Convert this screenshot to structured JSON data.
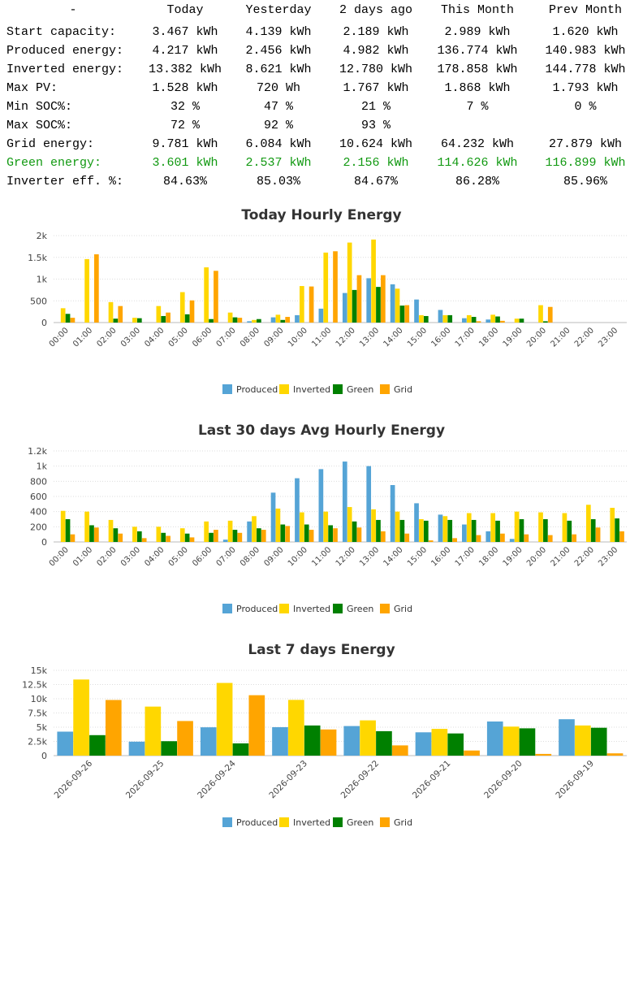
{
  "table": {
    "corner": "-",
    "columns": [
      "Today",
      "Yesterday",
      "2 days ago",
      "This Month",
      "Prev Month"
    ],
    "rows": [
      {
        "label": "Start capacity:",
        "values": [
          "3.467 kWh",
          "4.139 kWh",
          "2.189 kWh",
          "2.989 kWh",
          "1.620 kWh"
        ],
        "highlight": false
      },
      {
        "label": "Produced energy:",
        "values": [
          "4.217 kWh",
          "2.456 kWh",
          "4.982 kWh",
          "136.774 kWh",
          "140.983 kWh"
        ],
        "highlight": false
      },
      {
        "label": "Inverted energy:",
        "values": [
          "13.382 kWh",
          "8.621 kWh",
          "12.780 kWh",
          "178.858 kWh",
          "144.778 kWh"
        ],
        "highlight": false
      },
      {
        "label": "Max PV:",
        "values": [
          "1.528 kWh",
          "720 Wh",
          "1.767 kWh",
          "1.868 kWh",
          "1.793 kWh"
        ],
        "highlight": false
      },
      {
        "label": "Min SOC%:",
        "values": [
          "32 %",
          "47 %",
          "21 %",
          "7 %",
          "0 %"
        ],
        "highlight": false
      },
      {
        "label": "Max SOC%:",
        "values": [
          "72 %",
          "92 %",
          "93 %",
          "",
          ""
        ],
        "highlight": false
      },
      {
        "label": "Grid energy:",
        "values": [
          "9.781 kWh",
          "6.084 kWh",
          "10.624 kWh",
          "64.232 kWh",
          "27.879 kWh"
        ],
        "highlight": false
      },
      {
        "label": "Green energy:",
        "values": [
          "3.601 kWh",
          "2.537 kWh",
          "2.156 kWh",
          "114.626 kWh",
          "116.899 kWh"
        ],
        "highlight": true
      },
      {
        "label": "Inverter eff. %:",
        "values": [
          "84.63%",
          "85.03%",
          "84.67%",
          "86.28%",
          "85.96%"
        ],
        "highlight": false
      }
    ],
    "colors": {
      "text": "#000000",
      "green": "#119911"
    }
  },
  "chart_data": [
    {
      "type": "bar",
      "title": "Today Hourly Energy",
      "categories": [
        "00:00",
        "01:00",
        "02:00",
        "03:00",
        "04:00",
        "05:00",
        "06:00",
        "07:00",
        "08:00",
        "09:00",
        "10:00",
        "11:00",
        "12:00",
        "13:00",
        "14:00",
        "15:00",
        "16:00",
        "17:00",
        "18:00",
        "19:00",
        "20:00",
        "21:00",
        "22:00",
        "23:00"
      ],
      "series": [
        {
          "name": "Produced",
          "color": "#55a4d6",
          "values": [
            0,
            0,
            0,
            0,
            0,
            0,
            0,
            0,
            30,
            120,
            170,
            320,
            680,
            1020,
            880,
            530,
            290,
            100,
            70,
            0,
            0,
            0,
            0,
            0
          ]
        },
        {
          "name": "Inverted",
          "color": "#ffd700",
          "values": [
            330,
            1460,
            470,
            110,
            380,
            700,
            1270,
            230,
            60,
            180,
            840,
            1610,
            1840,
            1910,
            780,
            170,
            170,
            170,
            180,
            90,
            400,
            0,
            0,
            0
          ]
        },
        {
          "name": "Green",
          "color": "#008000",
          "values": [
            200,
            0,
            90,
            100,
            150,
            190,
            80,
            120,
            80,
            60,
            0,
            0,
            750,
            820,
            390,
            150,
            170,
            130,
            140,
            90,
            30,
            0,
            0,
            0
          ]
        },
        {
          "name": "Grid",
          "color": "#ffa500",
          "values": [
            110,
            1570,
            380,
            0,
            230,
            510,
            1190,
            110,
            0,
            130,
            830,
            1640,
            1090,
            1090,
            400,
            0,
            0,
            30,
            40,
            0,
            360,
            0,
            0,
            0
          ]
        }
      ],
      "ylim": [
        0,
        2000
      ],
      "yticks": [
        "0",
        "500",
        "1k",
        "1.5k",
        "2k"
      ],
      "grid": true,
      "legend": "bottom"
    },
    {
      "type": "bar",
      "title": "Last 30 days Avg Hourly Energy",
      "categories": [
        "00:00",
        "01:00",
        "02:00",
        "03:00",
        "04:00",
        "05:00",
        "06:00",
        "07:00",
        "08:00",
        "09:00",
        "10:00",
        "11:00",
        "12:00",
        "13:00",
        "14:00",
        "15:00",
        "16:00",
        "17:00",
        "18:00",
        "19:00",
        "20:00",
        "21:00",
        "22:00",
        "23:00"
      ],
      "series": [
        {
          "name": "Produced",
          "color": "#55a4d6",
          "values": [
            0,
            0,
            0,
            0,
            0,
            0,
            0,
            30,
            270,
            650,
            840,
            960,
            1060,
            1000,
            750,
            510,
            360,
            230,
            140,
            40,
            0,
            0,
            0,
            0
          ]
        },
        {
          "name": "Inverted",
          "color": "#ffd700",
          "values": [
            410,
            400,
            290,
            200,
            200,
            180,
            270,
            280,
            340,
            440,
            390,
            400,
            460,
            430,
            400,
            300,
            340,
            380,
            380,
            400,
            390,
            380,
            490,
            450
          ]
        },
        {
          "name": "Green",
          "color": "#008000",
          "values": [
            300,
            220,
            180,
            140,
            120,
            110,
            120,
            160,
            180,
            230,
            230,
            220,
            270,
            290,
            290,
            280,
            290,
            290,
            280,
            300,
            300,
            280,
            300,
            310
          ]
        },
        {
          "name": "Grid",
          "color": "#ffa500",
          "values": [
            100,
            190,
            110,
            50,
            80,
            60,
            160,
            120,
            160,
            210,
            160,
            180,
            190,
            140,
            110,
            20,
            50,
            90,
            110,
            100,
            90,
            100,
            190,
            140
          ]
        }
      ],
      "ylim": [
        0,
        1200
      ],
      "yticks": [
        "0",
        "200",
        "400",
        "600",
        "800",
        "1k",
        "1.2k"
      ],
      "grid": true,
      "legend": "bottom"
    },
    {
      "type": "bar",
      "title": "Last 7 days Energy",
      "categories": [
        "2026-09-26",
        "2026-09-25",
        "2026-09-24",
        "2026-09-23",
        "2026-09-22",
        "2026-09-21",
        "2026-09-20",
        "2026-09-19"
      ],
      "series": [
        {
          "name": "Produced",
          "color": "#55a4d6",
          "values": [
            4217,
            2456,
            4982,
            5000,
            5200,
            4100,
            6000,
            6400
          ]
        },
        {
          "name": "Inverted",
          "color": "#ffd700",
          "values": [
            13382,
            8621,
            12780,
            9800,
            6200,
            4700,
            5100,
            5300
          ]
        },
        {
          "name": "Green",
          "color": "#008000",
          "values": [
            3601,
            2537,
            2156,
            5300,
            4300,
            3900,
            4800,
            4900
          ]
        },
        {
          "name": "Grid",
          "color": "#ffa500",
          "values": [
            9781,
            6084,
            10624,
            4600,
            1800,
            900,
            300,
            400
          ]
        }
      ],
      "ylim": [
        0,
        15000
      ],
      "yticks": [
        "0",
        "2.5k",
        "5k",
        "7.5k",
        "10k",
        "12.5k",
        "15k"
      ],
      "grid": true,
      "legend": "bottom"
    }
  ]
}
